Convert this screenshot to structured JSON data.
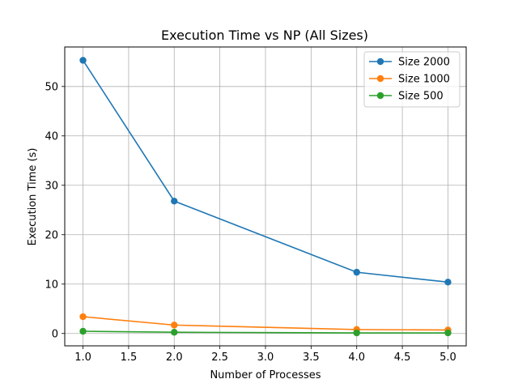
{
  "chart_data": {
    "type": "line",
    "title": "Execution Time vs NP (All Sizes)",
    "xlabel": "Number of Processes",
    "ylabel": "Execution Time (s)",
    "xlim": [
      0.8,
      5.2
    ],
    "ylim": [
      -2.5,
      58.0
    ],
    "xticks": [
      1.0,
      1.5,
      2.0,
      2.5,
      3.0,
      3.5,
      4.0,
      4.5,
      5.0
    ],
    "xtick_labels": [
      "1.0",
      "1.5",
      "2.0",
      "2.5",
      "3.0",
      "3.5",
      "4.0",
      "4.5",
      "5.0"
    ],
    "yticks": [
      0,
      10,
      20,
      30,
      40,
      50
    ],
    "ytick_labels": [
      "0",
      "10",
      "20",
      "30",
      "40",
      "50"
    ],
    "grid": true,
    "legend_position": "top-right",
    "x": [
      1,
      2,
      4,
      5
    ],
    "series": [
      {
        "name": "Size 2000",
        "color": "#1f77b4",
        "values": [
          55.3,
          26.8,
          12.4,
          10.4
        ]
      },
      {
        "name": "Size 1000",
        "color": "#ff7f0e",
        "values": [
          3.4,
          1.7,
          0.8,
          0.7
        ]
      },
      {
        "name": "Size 500",
        "color": "#2ca02c",
        "values": [
          0.45,
          0.25,
          0.12,
          0.12
        ]
      }
    ]
  }
}
